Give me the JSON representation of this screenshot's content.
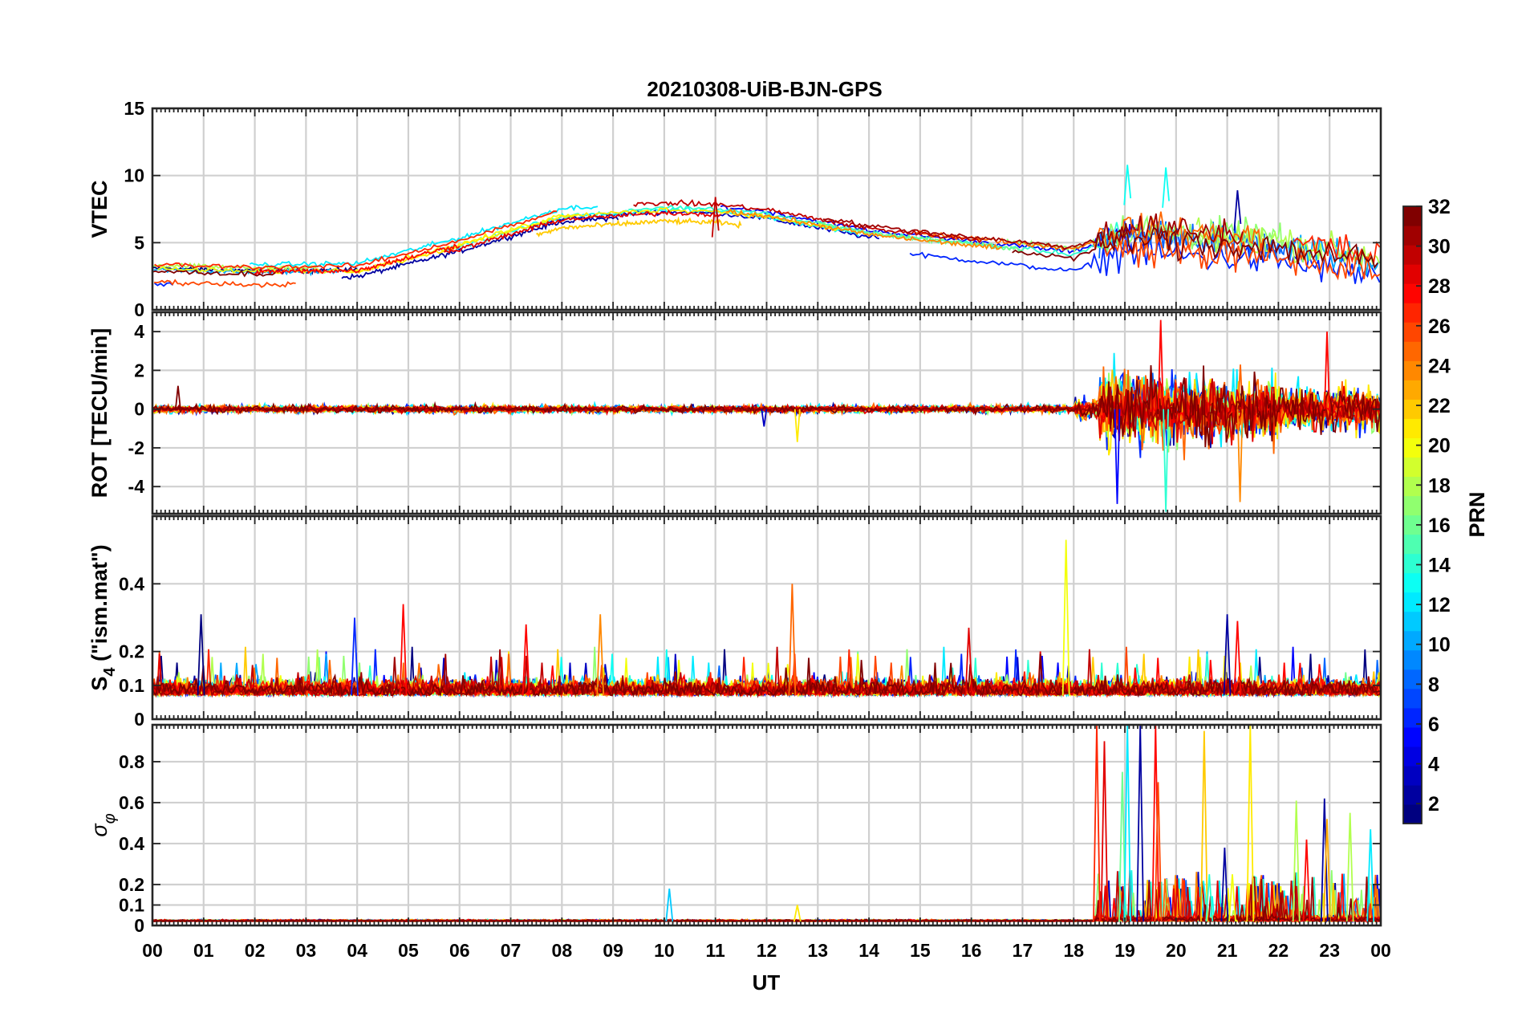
{
  "chart_data": {
    "type": "line",
    "title": "20210308-UiB-BJN-GPS",
    "xlabel": "UT",
    "x_ticks": [
      "00",
      "01",
      "02",
      "03",
      "04",
      "05",
      "06",
      "07",
      "08",
      "09",
      "10",
      "11",
      "12",
      "13",
      "14",
      "15",
      "16",
      "17",
      "18",
      "19",
      "20",
      "21",
      "22",
      "23",
      "00"
    ],
    "x_range_hours": [
      0,
      24
    ],
    "colormap": "jet",
    "colorbar": {
      "label": "PRN",
      "range": [
        1,
        32
      ],
      "ticks": [
        "2",
        "4",
        "6",
        "8",
        "10",
        "12",
        "14",
        "16",
        "18",
        "20",
        "22",
        "24",
        "26",
        "28",
        "30",
        "32"
      ],
      "placement": "right"
    },
    "grid": true,
    "panels": [
      {
        "id": "vtec",
        "ylabel": "VTEC",
        "ylim": [
          0,
          15
        ],
        "yticks": [
          {
            "v": 0,
            "t": "0"
          },
          {
            "v": 5,
            "t": "5"
          },
          {
            "v": 10,
            "t": "10"
          },
          {
            "v": 15,
            "t": "15"
          }
        ],
        "series_summary": [
          {
            "hour": 0,
            "level": 3.0
          },
          {
            "hour": 2,
            "level": 2.8
          },
          {
            "hour": 4,
            "level": 2.9
          },
          {
            "hour": 6,
            "level": 4.8
          },
          {
            "hour": 8,
            "level": 7.0
          },
          {
            "hour": 10,
            "level": 7.5
          },
          {
            "hour": 11,
            "level": 7.4
          },
          {
            "hour": 12,
            "level": 7.0
          },
          {
            "hour": 14,
            "level": 5.6
          },
          {
            "hour": 16,
            "level": 4.8
          },
          {
            "hour": 18,
            "level": 4.0
          },
          {
            "hour": 19,
            "level": 5.5
          },
          {
            "hour": 20,
            "level": 5.2
          },
          {
            "hour": 21,
            "level": 5.0
          },
          {
            "hour": 22,
            "level": 4.8
          },
          {
            "hour": 23,
            "level": 4.2
          },
          {
            "hour": 24,
            "level": 3.6
          }
        ],
        "peaks": [
          {
            "hour": 19.05,
            "value": 10.8,
            "prn": 13
          },
          {
            "hour": 19.8,
            "value": 10.6,
            "prn": 13
          },
          {
            "hour": 21.2,
            "value": 8.9,
            "prn": 2
          },
          {
            "hour": 11.0,
            "value": 8.4,
            "prn": 30
          }
        ]
      },
      {
        "id": "rot",
        "ylabel": "ROT [TECU/min]",
        "ylim": [
          -5.4,
          5
        ],
        "yticks": [
          {
            "v": -4,
            "t": "-4"
          },
          {
            "v": -2,
            "t": "-2"
          },
          {
            "v": 0,
            "t": "0"
          },
          {
            "v": 2,
            "t": "2"
          },
          {
            "v": 4,
            "t": "4"
          }
        ],
        "activity": [
          {
            "from": 0,
            "to": 18,
            "amplitude": 0.35
          },
          {
            "from": 18,
            "to": 18.5,
            "amplitude": 1.0
          },
          {
            "from": 18.5,
            "to": 20.5,
            "amplitude": 3.6
          },
          {
            "from": 20.5,
            "to": 22,
            "amplitude": 3.0
          },
          {
            "from": 22,
            "to": 24,
            "amplitude": 2.0
          }
        ],
        "peaks": [
          {
            "hour": 19.7,
            "value": 4.6,
            "prn": 28
          },
          {
            "hour": 19.8,
            "value": -5.3,
            "prn": 14
          },
          {
            "hour": 21.25,
            "value": -4.8,
            "prn": 24
          },
          {
            "hour": 18.85,
            "value": -4.9,
            "prn": 5
          },
          {
            "hour": 22.95,
            "value": 4.0,
            "prn": 28
          },
          {
            "hour": 0.5,
            "value": 1.2,
            "prn": 32
          },
          {
            "hour": 12.6,
            "value": -1.7,
            "prn": 21
          },
          {
            "hour": 11.95,
            "value": -0.9,
            "prn": 3
          }
        ]
      },
      {
        "id": "s4",
        "ylabel": "S4 (\"ism.mat\")",
        "ylabel_main": "S",
        "ylabel_sub": "4",
        "ylabel_rest": " (\"ism.mat\")",
        "ylim": [
          0,
          0.6
        ],
        "yticks": [
          {
            "v": 0,
            "t": "0"
          },
          {
            "v": 0.1,
            "t": "0.1"
          },
          {
            "v": 0.2,
            "t": "0.2"
          },
          {
            "v": 0.4,
            "t": "0.4"
          }
        ],
        "baseline": 0.07,
        "peaks": [
          {
            "hour": 0.95,
            "value": 0.31,
            "prn": 1
          },
          {
            "hour": 3.95,
            "value": 0.3,
            "prn": 6
          },
          {
            "hour": 4.9,
            "value": 0.34,
            "prn": 28
          },
          {
            "hour": 7.3,
            "value": 0.28,
            "prn": 28
          },
          {
            "hour": 8.75,
            "value": 0.31,
            "prn": 24
          },
          {
            "hour": 12.5,
            "value": 0.4,
            "prn": 25
          },
          {
            "hour": 15.95,
            "value": 0.27,
            "prn": 29
          },
          {
            "hour": 17.85,
            "value": 0.53,
            "prn": 20
          },
          {
            "hour": 21.0,
            "value": 0.31,
            "prn": 2
          },
          {
            "hour": 21.2,
            "value": 0.29,
            "prn": 28
          }
        ]
      },
      {
        "id": "sigma",
        "ylabel": "σφ",
        "ylabel_main": "σ",
        "ylabel_sub": "φ",
        "ylim": [
          0,
          0.98
        ],
        "yticks": [
          {
            "v": 0,
            "t": "0"
          },
          {
            "v": 0.1,
            "t": "0.1"
          },
          {
            "v": 0.2,
            "t": "0.2"
          },
          {
            "v": 0.4,
            "t": "0.4"
          },
          {
            "v": 0.6,
            "t": "0.6"
          },
          {
            "v": 0.8,
            "t": "0.8"
          }
        ],
        "baseline": 0.02,
        "peaks": [
          {
            "hour": 18.45,
            "value": 0.98,
            "prn": 27
          },
          {
            "hour": 18.6,
            "value": 0.9,
            "prn": 29
          },
          {
            "hour": 18.95,
            "value": 0.75,
            "prn": 16
          },
          {
            "hour": 19.05,
            "value": 0.98,
            "prn": 12
          },
          {
            "hour": 19.3,
            "value": 0.98,
            "prn": 2
          },
          {
            "hour": 19.6,
            "value": 0.98,
            "prn": 28
          },
          {
            "hour": 19.65,
            "value": 0.7,
            "prn": 26
          },
          {
            "hour": 20.55,
            "value": 0.95,
            "prn": 22
          },
          {
            "hour": 20.65,
            "value": 0.25,
            "prn": 14
          },
          {
            "hour": 20.95,
            "value": 0.38,
            "prn": 2
          },
          {
            "hour": 21.1,
            "value": 0.25,
            "prn": 20
          },
          {
            "hour": 21.45,
            "value": 0.98,
            "prn": 21
          },
          {
            "hour": 22.35,
            "value": 0.61,
            "prn": 18
          },
          {
            "hour": 22.55,
            "value": 0.42,
            "prn": 28
          },
          {
            "hour": 22.9,
            "value": 0.62,
            "prn": 2
          },
          {
            "hour": 22.95,
            "value": 0.52,
            "prn": 23
          },
          {
            "hour": 23.4,
            "value": 0.55,
            "prn": 18
          },
          {
            "hour": 23.8,
            "value": 0.47,
            "prn": 12
          },
          {
            "hour": 10.1,
            "value": 0.18,
            "prn": 11
          },
          {
            "hour": 12.6,
            "value": 0.1,
            "prn": 21
          }
        ]
      }
    ]
  }
}
